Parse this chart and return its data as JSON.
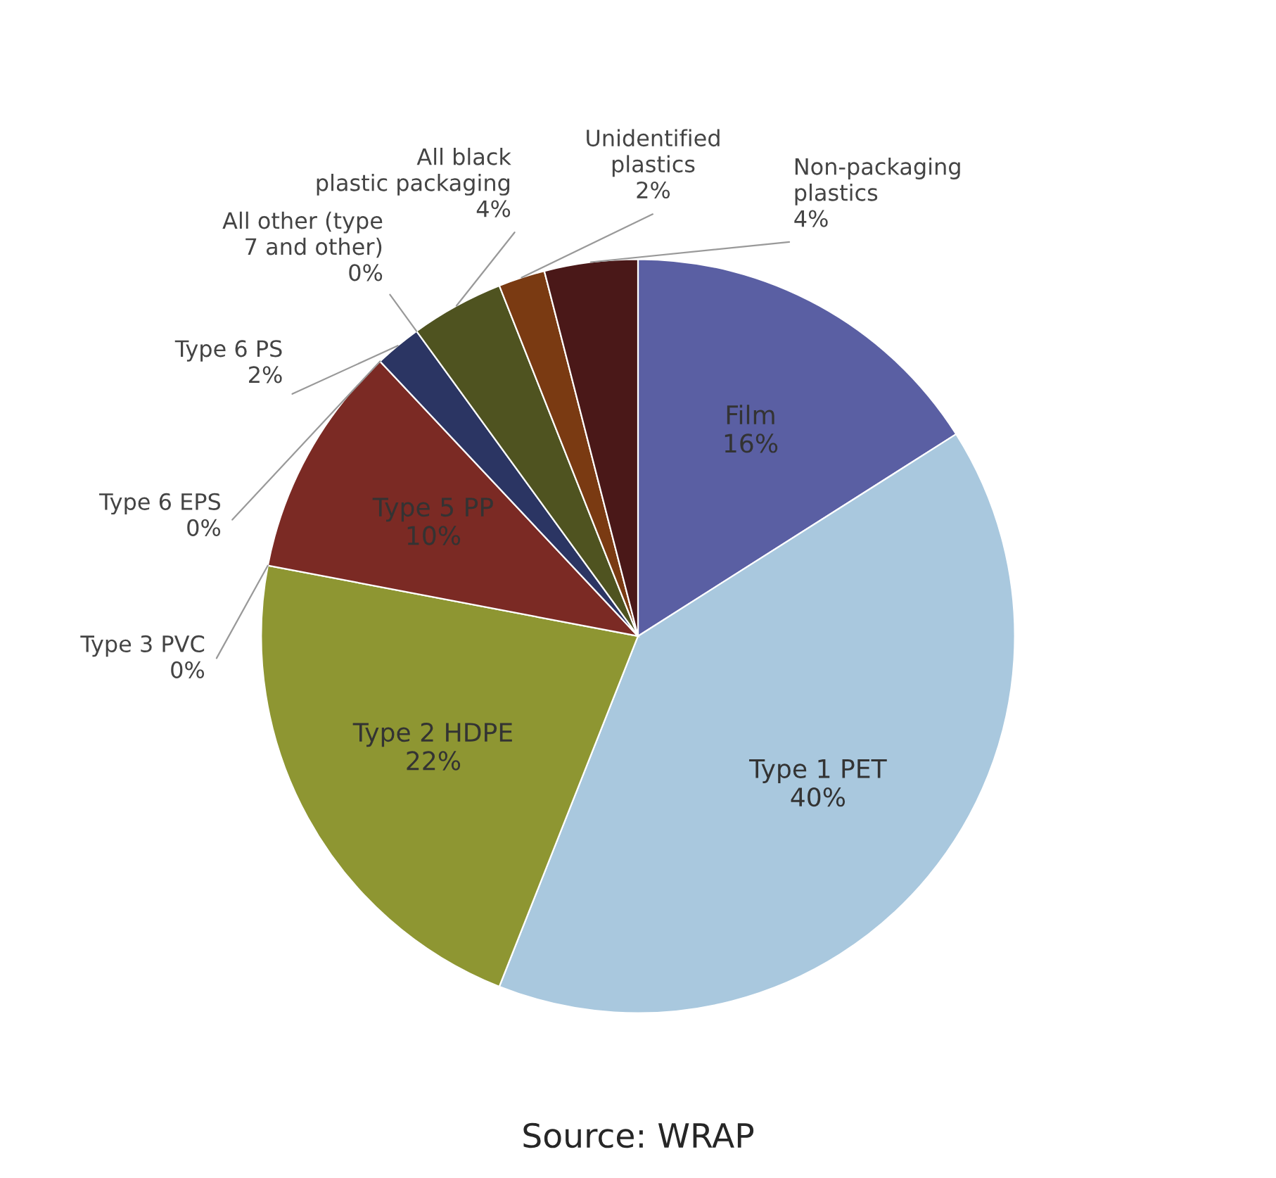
{
  "chart_data": {
    "type": "pie",
    "categories": [
      "Film",
      "Type 1 PET",
      "Type 2 HDPE",
      "Type 3 PVC",
      "Type 5 PP",
      "Type 6 EPS",
      "Type 6 PS",
      "All other (type 7 and other)",
      "All black plastic packaging",
      "Unidentified plastics",
      "Non-packaging plastics"
    ],
    "values": [
      16,
      40,
      22,
      0,
      10,
      0,
      2,
      0,
      4,
      2,
      4
    ],
    "colors": [
      "#5a5fa3",
      "#a9c8de",
      "#8e9632",
      "#c0504d",
      "#7b2a24",
      "#1f3a6e",
      "#2b3563",
      "#7fb0d6",
      "#4f5320",
      "#7a3a12",
      "#4a1818"
    ],
    "value_labels": [
      "16%",
      "40%",
      "22%",
      "0%",
      "10%",
      "0%",
      "2%",
      "0%",
      "4%",
      "2%",
      "4%"
    ],
    "annotations": [
      "Source: WRAP"
    ]
  }
}
